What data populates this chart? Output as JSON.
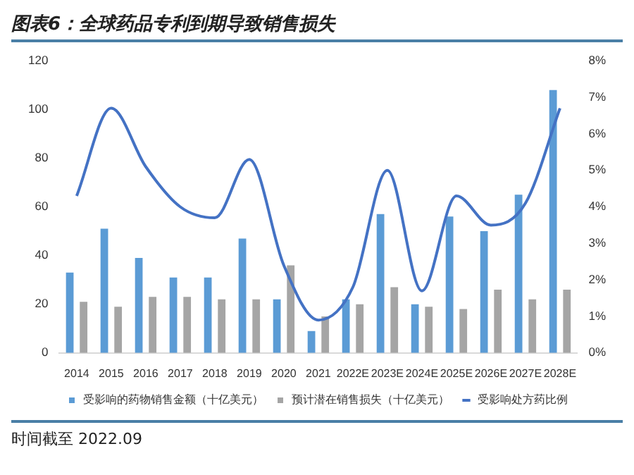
{
  "chart_data": {
    "type": "bar",
    "title": "图表6：全球药品专利到期导致销售损失",
    "categories": [
      "2014",
      "2015",
      "2016",
      "2017",
      "2018",
      "2019",
      "2020",
      "2021",
      "2022E",
      "2023E",
      "2024E",
      "2025E",
      "2026E",
      "2027E",
      "2028E"
    ],
    "series": [
      {
        "name": "受影响的药物销售金额（十亿美元）",
        "color": "#5b9bd5",
        "values": [
          33,
          51,
          39,
          31,
          31,
          47,
          22,
          9,
          22,
          57,
          20,
          56,
          50,
          65,
          108
        ]
      },
      {
        "name": "预计潜在销售损失（十亿美元）",
        "color": "#a5a5a5",
        "values": [
          21,
          19,
          23,
          23,
          22,
          22,
          36,
          15,
          20,
          27,
          19,
          18,
          26,
          22,
          26
        ]
      },
      {
        "name": "受影响处方药比例",
        "type": "line",
        "axis": "y2",
        "color": "#4472c4",
        "values": [
          4.3,
          6.7,
          5.1,
          4.0,
          3.7,
          5.3,
          2.4,
          0.9,
          1.8,
          5.0,
          1.7,
          4.3,
          3.5,
          4.1,
          6.7
        ]
      }
    ],
    "ylim": [
      0,
      120
    ],
    "yticks": [
      0,
      20,
      40,
      60,
      80,
      100,
      120
    ],
    "y2lim": [
      0,
      8
    ],
    "y2ticks": [
      {
        "value": 0,
        "label": "0%"
      },
      {
        "value": 1,
        "label": "1%"
      },
      {
        "value": 2,
        "label": "2%"
      },
      {
        "value": 3,
        "label": "3%"
      },
      {
        "value": 4,
        "label": "4%"
      },
      {
        "value": 5,
        "label": "5%"
      },
      {
        "value": 6,
        "label": "6%"
      },
      {
        "value": 7,
        "label": "7%"
      },
      {
        "value": 8,
        "label": "8%"
      }
    ],
    "grid": false,
    "legend": "bottom",
    "marker": "none",
    "annotations": [
      "时间截至 2022.09"
    ]
  }
}
